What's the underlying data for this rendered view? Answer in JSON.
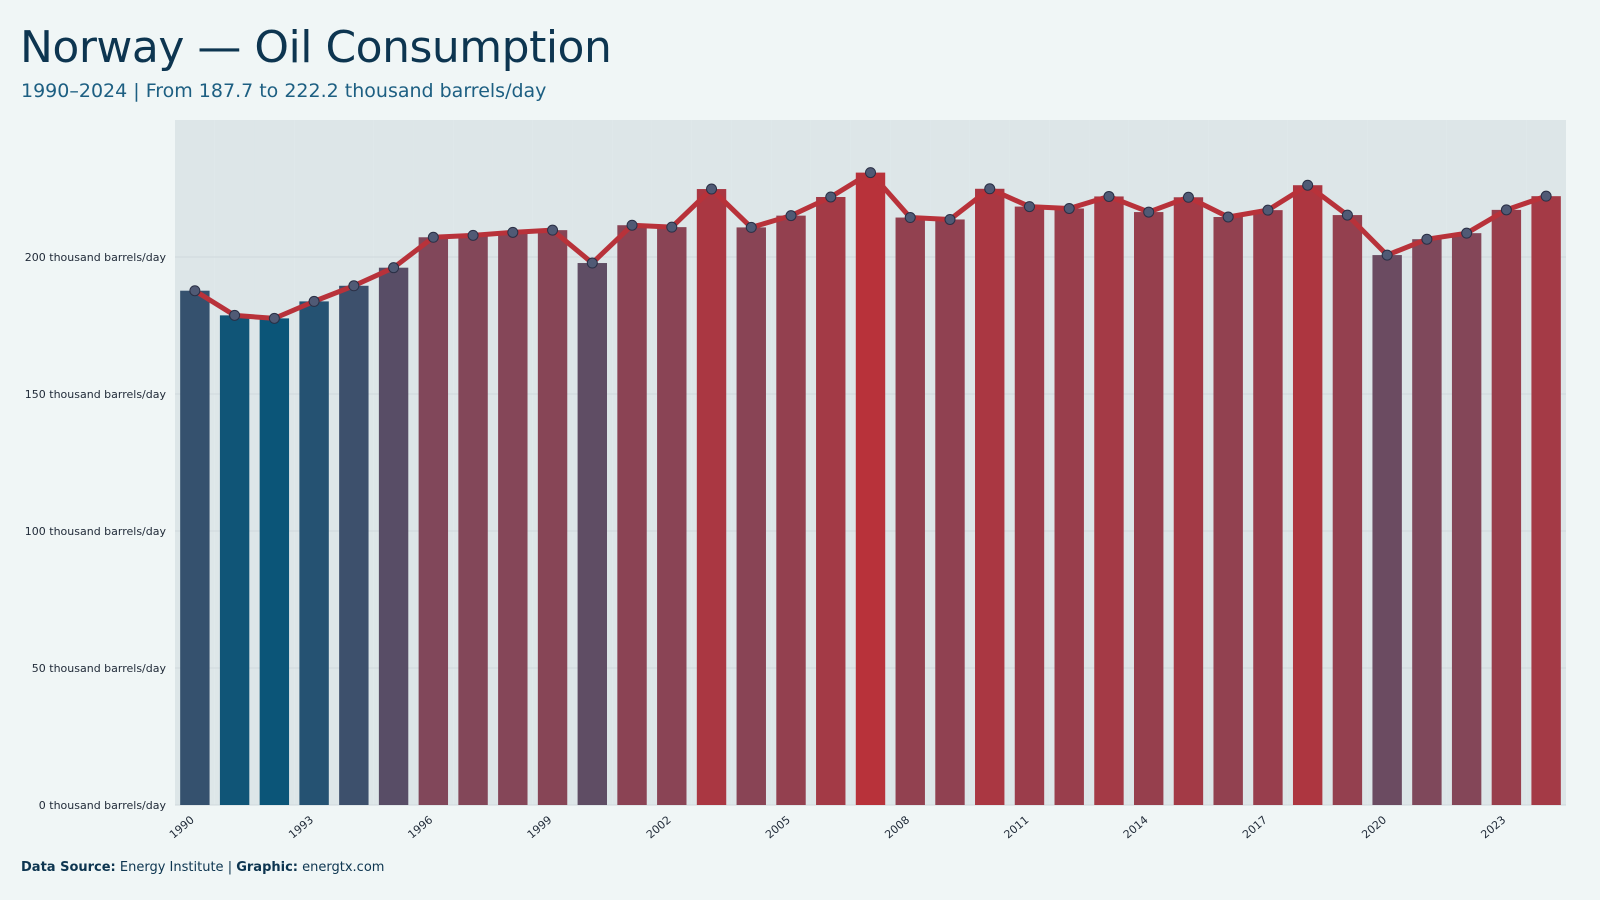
{
  "header": {
    "title": "Norway — Oil Consumption",
    "subtitle": "1990–2024 | From 187.7 to 222.2 thousand barrels/day"
  },
  "footer": {
    "source_label": "Data Source:",
    "source_value": "Energy Institute",
    "separator": "|",
    "graphic_label": "Graphic:",
    "graphic_value": "energtx.com"
  },
  "colors": {
    "background": "#f0f6f6",
    "low": "#0b5578",
    "mid": "#7a4a5e",
    "high": "#b8323a",
    "line": "#b8323a",
    "marker": "#505a75",
    "grid": "#cfd8dc"
  },
  "chart_data": {
    "type": "bar",
    "x": [
      1990,
      1991,
      1992,
      1993,
      1994,
      1995,
      1996,
      1997,
      1998,
      1999,
      2000,
      2001,
      2002,
      2003,
      2004,
      2005,
      2006,
      2007,
      2008,
      2009,
      2010,
      2011,
      2012,
      2013,
      2014,
      2015,
      2016,
      2017,
      2018,
      2019,
      2020,
      2021,
      2022,
      2023,
      2024
    ],
    "values": [
      187.7,
      178.7,
      177.6,
      183.8,
      189.5,
      196.1,
      207.2,
      207.9,
      209.0,
      209.8,
      197.8,
      211.6,
      210.9,
      224.8,
      210.8,
      215.1,
      221.9,
      230.8,
      214.4,
      213.7,
      224.9,
      218.4,
      217.7,
      222.1,
      216.4,
      221.8,
      214.6,
      217.1,
      226.2,
      215.3,
      200.7,
      206.5,
      208.7,
      217.2,
      222.2
    ],
    "overlay": "line",
    "xticks": [
      "1990",
      "1993",
      "1996",
      "1999",
      "2002",
      "2005",
      "2008",
      "2011",
      "2014",
      "2017",
      "2020",
      "2023"
    ],
    "yticks": [
      0,
      50,
      100,
      150,
      200
    ],
    "ytick_labels": [
      "0 thousand barrels/day",
      "50 thousand barrels/day",
      "100 thousand barrels/day",
      "150 thousand barrels/day",
      "200 thousand barrels/day"
    ],
    "ylim": [
      0,
      250
    ],
    "grid": true,
    "legend": "none"
  }
}
